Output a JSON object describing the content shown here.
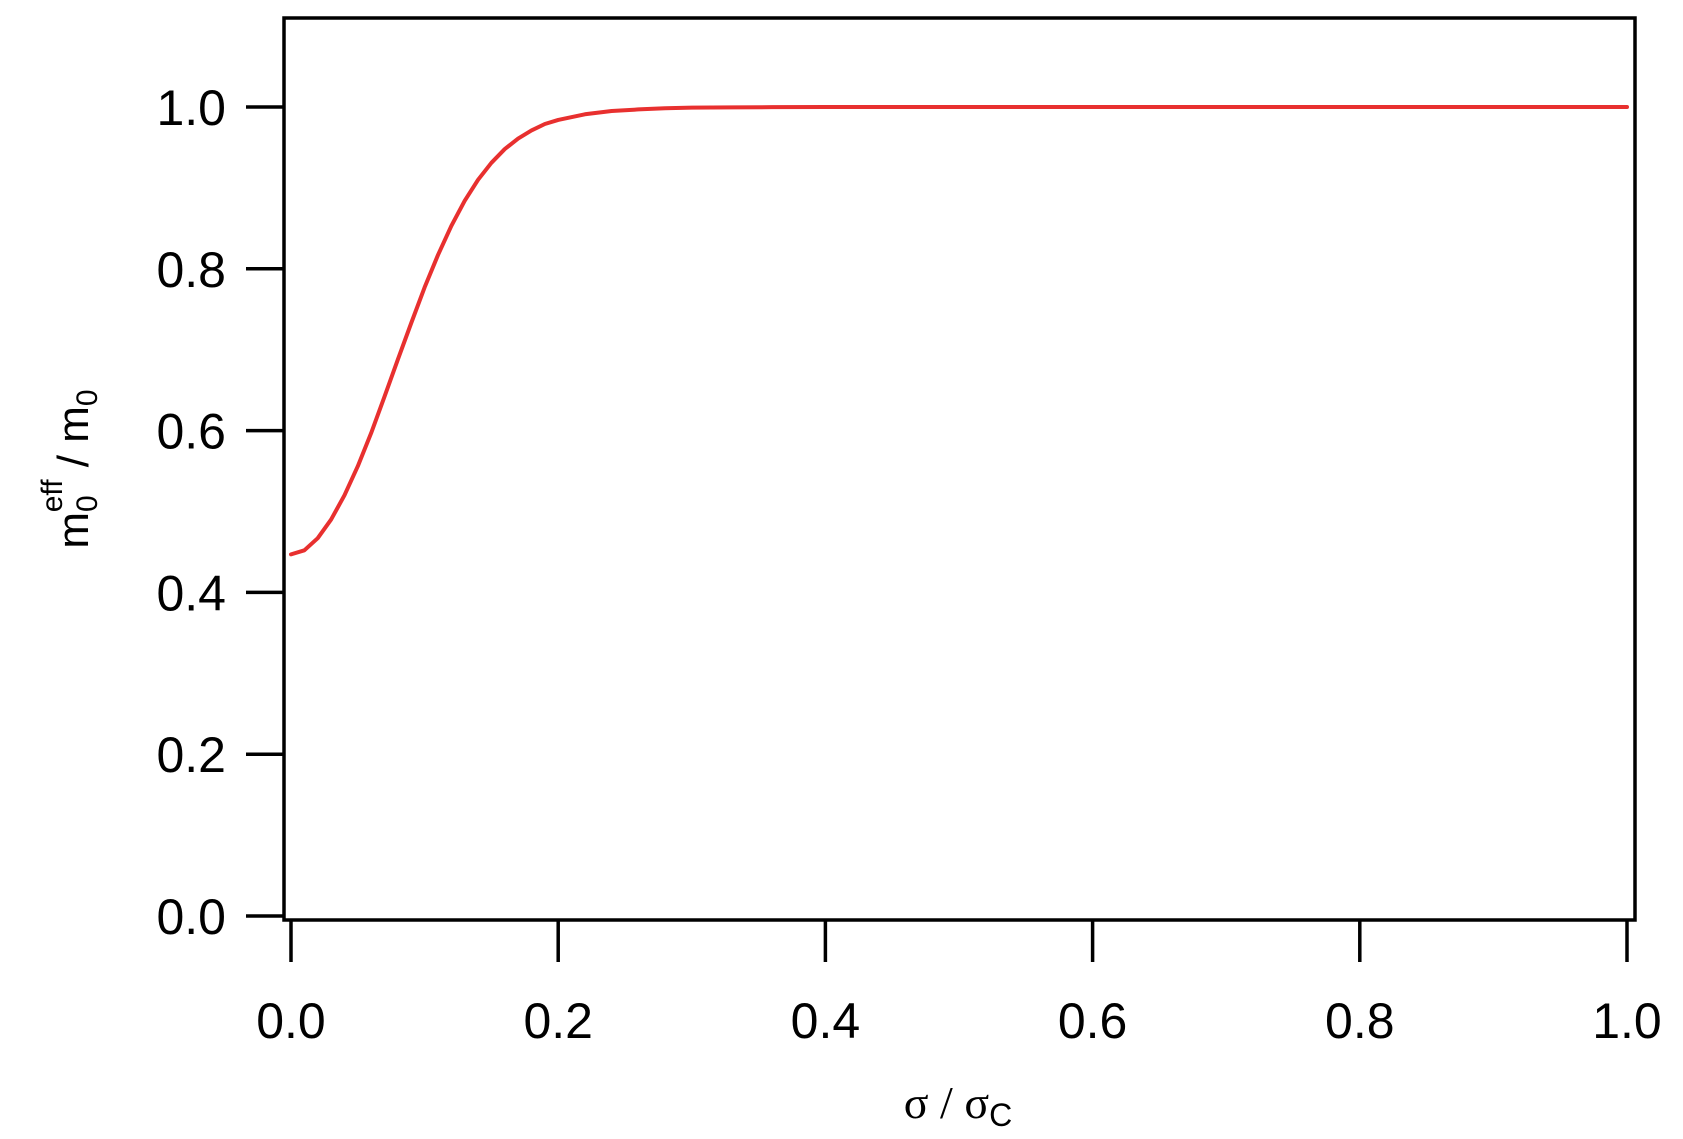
{
  "chart_data": {
    "type": "line",
    "title": "",
    "xlabel": {
      "base": "σ",
      "sep": " / ",
      "base2": "σ",
      "sub2": "C"
    },
    "ylabel": {
      "base": "m",
      "sub": "0",
      "sup": "eff",
      "sep": " / ",
      "base2": "m",
      "sub2": "0"
    },
    "xlim": [
      0.0,
      1.0
    ],
    "ylim": [
      0.0,
      1.1
    ],
    "x_ticks": [
      0.0,
      0.2,
      0.4,
      0.6,
      0.8,
      1.0
    ],
    "x_tick_labels": [
      "0.0",
      "0.2",
      "0.4",
      "0.6",
      "0.8",
      "1.0"
    ],
    "y_ticks": [
      0.0,
      0.2,
      0.4,
      0.6,
      0.8,
      1.0
    ],
    "y_tick_labels": [
      "0.0",
      "0.2",
      "0.4",
      "0.6",
      "0.8",
      "1.0"
    ],
    "grid": false,
    "legend": "none",
    "series": [
      {
        "color": "#e8302f",
        "x": [
          0.0,
          0.01,
          0.02,
          0.03,
          0.04,
          0.05,
          0.06,
          0.07,
          0.08,
          0.09,
          0.1,
          0.11,
          0.12,
          0.13,
          0.14,
          0.15,
          0.16,
          0.17,
          0.18,
          0.19,
          0.2,
          0.22,
          0.24,
          0.26,
          0.28,
          0.3,
          0.33,
          0.36,
          0.4,
          0.5,
          0.6,
          0.7,
          0.8,
          0.9,
          1.0
        ],
        "y": [
          0.447,
          0.452,
          0.467,
          0.49,
          0.52,
          0.556,
          0.597,
          0.642,
          0.688,
          0.733,
          0.777,
          0.817,
          0.853,
          0.884,
          0.91,
          0.931,
          0.948,
          0.961,
          0.971,
          0.979,
          0.984,
          0.991,
          0.995,
          0.997,
          0.9985,
          0.9992,
          0.9996,
          0.9998,
          1.0,
          1.0,
          1.0,
          1.0,
          1.0,
          1.0,
          1.0
        ]
      }
    ]
  }
}
